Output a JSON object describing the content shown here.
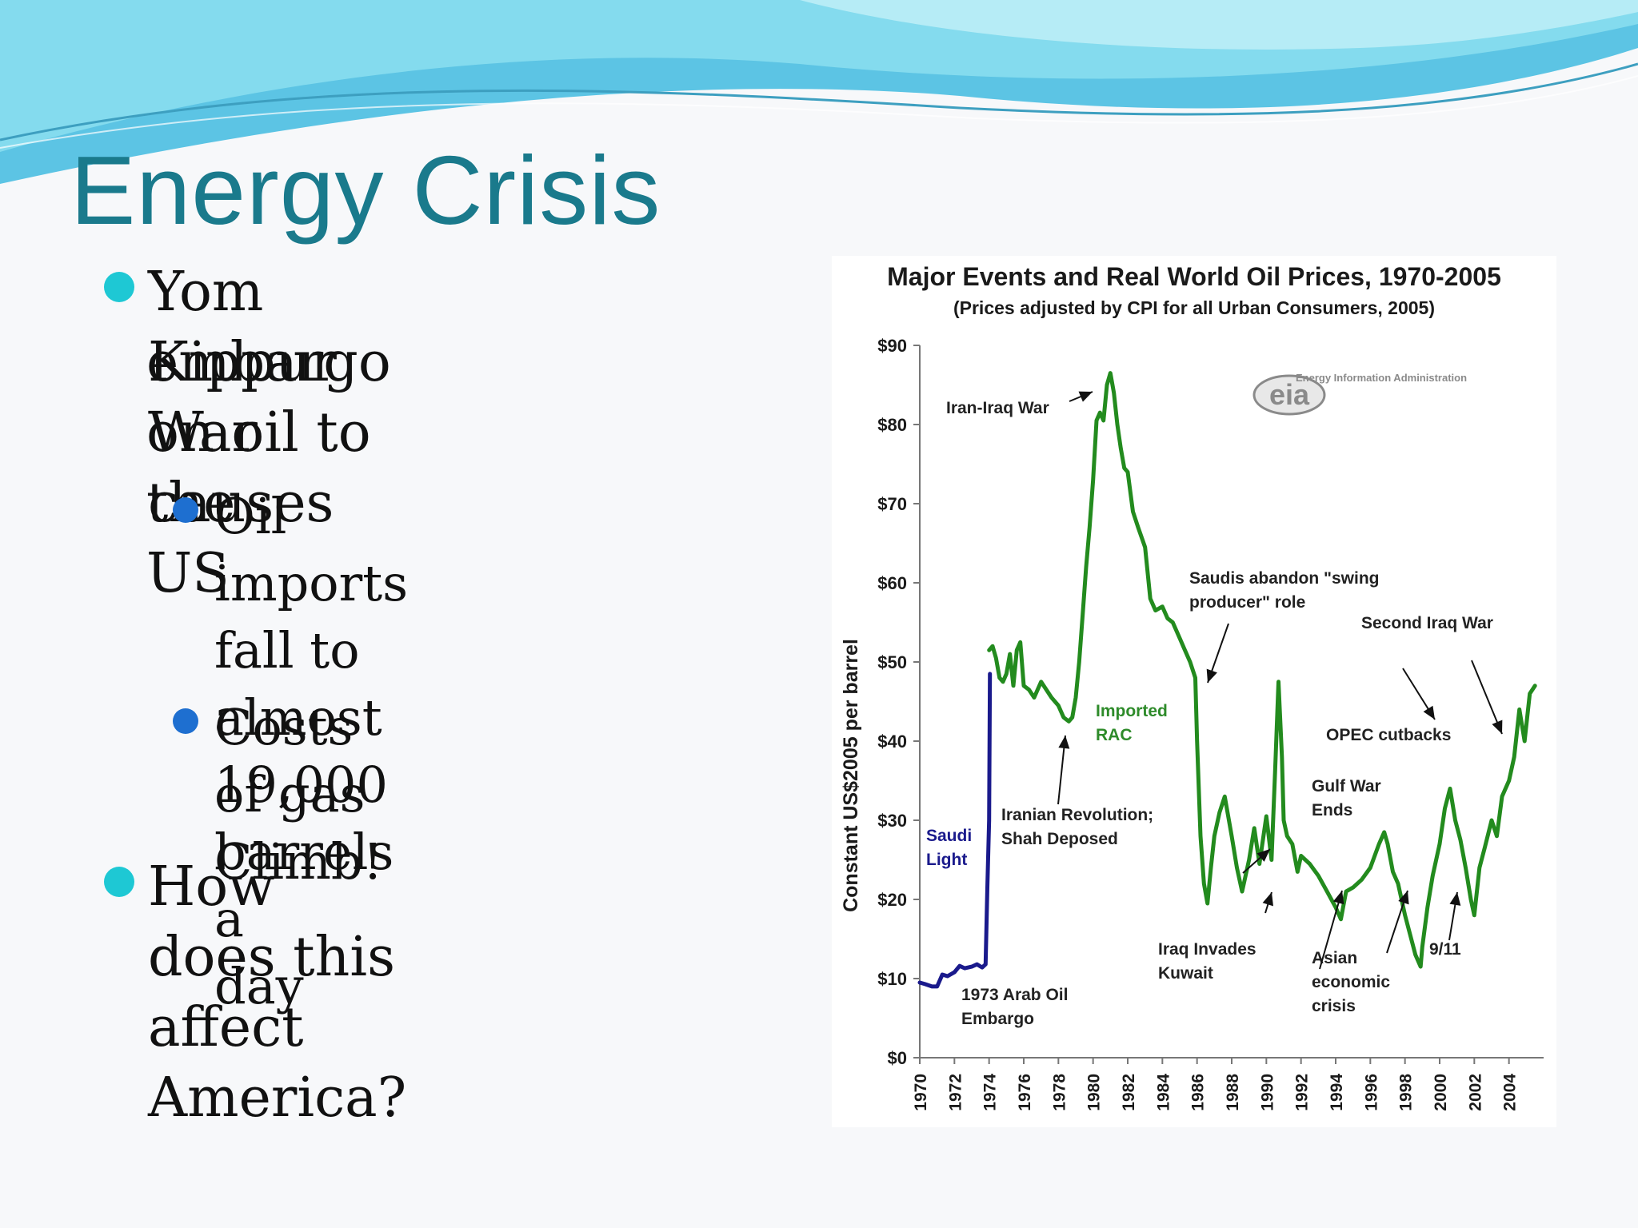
{
  "slide": {
    "title": "Energy Crisis",
    "bullets": [
      {
        "level": 1,
        "lines": [
          "Yom Kippur War causes",
          "embargo on oil to the",
          "US"
        ],
        "dot_color": "#1ec8d4"
      },
      {
        "level": 2,
        "lines": [
          "Oil imports fall to",
          "almost 19,000 barrels a",
          "day"
        ],
        "dot_color": "#1e6fd0"
      },
      {
        "level": 2,
        "lines": [
          "Costs of gas Climb!"
        ],
        "dot_color": "#1e6fd0"
      },
      {
        "level": 1,
        "lines": [
          "How does this affect",
          "America?"
        ],
        "dot_color": "#1ec8d4"
      }
    ],
    "colors": {
      "title": "#1a7a8c",
      "wave_light": "#8fe3f0",
      "wave_mid": "#5fc9e6",
      "wave_dark": "#3aa6cf"
    }
  },
  "chart_data": {
    "type": "line",
    "title": "Major Events and Real World Oil Prices, 1970-2005",
    "subtitle": "(Prices adjusted by CPI for all Urban Consumers, 2005)",
    "ylabel": "Constant US$2005 per barrel",
    "xlabel": "",
    "ylim": [
      0,
      90
    ],
    "xlim": [
      1970,
      2006
    ],
    "y_ticks": [
      "$0",
      "$10",
      "$20",
      "$30",
      "$40",
      "$50",
      "$60",
      "$70",
      "$80",
      "$90"
    ],
    "y_tick_values": [
      0,
      10,
      20,
      30,
      40,
      50,
      60,
      70,
      80,
      90
    ],
    "x_ticks": [
      "1970",
      "1972",
      "1974",
      "1976",
      "1978",
      "1980",
      "1982",
      "1984",
      "1986",
      "1988",
      "1990",
      "1992",
      "1994",
      "1996",
      "1998",
      "2000",
      "2002",
      "2004"
    ],
    "x_tick_values": [
      1970,
      1972,
      1974,
      1976,
      1978,
      1980,
      1982,
      1984,
      1986,
      1988,
      1990,
      1992,
      1994,
      1996,
      1998,
      2000,
      2002,
      2004
    ],
    "logo_text": "Energy Information Administration",
    "logo_mark": "eia",
    "series": [
      {
        "name": "Saudi Light",
        "color": "#1a1a8c",
        "x": [
          1970.0,
          1970.3,
          1970.7,
          1971.0,
          1971.3,
          1971.6,
          1972.0,
          1972.3,
          1972.6,
          1973.0,
          1973.3,
          1973.6,
          1973.8,
          1973.9,
          1974.0,
          1974.05
        ],
        "y": [
          9.5,
          9.3,
          9.0,
          9.0,
          10.5,
          10.3,
          10.8,
          11.6,
          11.3,
          11.5,
          11.8,
          11.4,
          11.8,
          21.5,
          30,
          48.5
        ]
      },
      {
        "name": "Imported RAC",
        "color": "#238b1e",
        "x": [
          1974.0,
          1974.2,
          1974.4,
          1974.6,
          1974.8,
          1975.0,
          1975.2,
          1975.4,
          1975.6,
          1975.8,
          1976.0,
          1976.3,
          1976.6,
          1977.0,
          1977.3,
          1977.6,
          1978.0,
          1978.3,
          1978.6,
          1978.8,
          1979.0,
          1979.2,
          1979.4,
          1979.6,
          1979.8,
          1980.0,
          1980.2,
          1980.4,
          1980.6,
          1980.8,
          1981.0,
          1981.2,
          1981.4,
          1981.6,
          1981.8,
          1982.0,
          1982.3,
          1982.6,
          1983.0,
          1983.3,
          1983.6,
          1984.0,
          1984.3,
          1984.6,
          1985.0,
          1985.3,
          1985.6,
          1985.9,
          1986.0,
          1986.2,
          1986.4,
          1986.6,
          1986.8,
          1987.0,
          1987.3,
          1987.6,
          1988.0,
          1988.3,
          1988.6,
          1989.0,
          1989.3,
          1989.6,
          1990.0,
          1990.3,
          1990.5,
          1990.7,
          1990.9,
          1991.0,
          1991.2,
          1991.5,
          1991.8,
          1992.0,
          1992.5,
          1993.0,
          1993.5,
          1994.0,
          1994.3,
          1994.6,
          1995.0,
          1995.5,
          1996.0,
          1996.5,
          1996.8,
          1997.0,
          1997.3,
          1997.6,
          1998.0,
          1998.3,
          1998.6,
          1998.9,
          1999.0,
          1999.3,
          1999.6,
          2000.0,
          2000.3,
          2000.6,
          2000.9,
          2001.2,
          2001.5,
          2001.8,
          2002.0,
          2002.3,
          2002.6,
          2003.0,
          2003.3,
          2003.6,
          2004.0,
          2004.3,
          2004.6,
          2004.9,
          2005.2,
          2005.5
        ],
        "y": [
          51.5,
          52.0,
          50.5,
          48.0,
          47.5,
          48.5,
          51.0,
          47.0,
          51.5,
          52.5,
          47.0,
          46.5,
          45.5,
          47.5,
          46.5,
          45.5,
          44.5,
          43.0,
          42.5,
          43.0,
          45.5,
          50.0,
          56.0,
          62.0,
          67.0,
          73.0,
          80.5,
          81.5,
          80.5,
          85.0,
          86.5,
          84.0,
          80.0,
          77.0,
          74.5,
          74.0,
          69.0,
          67.0,
          64.5,
          58.0,
          56.5,
          57.0,
          55.5,
          55.0,
          53.0,
          51.5,
          50.0,
          48.0,
          40.0,
          28.0,
          22.0,
          19.5,
          24.0,
          28.0,
          31.0,
          33.0,
          28.0,
          24.0,
          21.0,
          25.0,
          29.0,
          24.5,
          30.5,
          25.0,
          36.0,
          47.5,
          38.0,
          30.0,
          28.0,
          27.0,
          23.5,
          25.5,
          24.5,
          23.0,
          21.0,
          19.0,
          17.5,
          21.0,
          21.5,
          22.5,
          24.0,
          27.0,
          28.5,
          27.0,
          23.5,
          22.0,
          18.0,
          15.5,
          13.0,
          11.5,
          14.0,
          19.0,
          23.0,
          27.0,
          31.5,
          34.0,
          30.0,
          27.5,
          24.0,
          20.0,
          18.0,
          24.0,
          26.5,
          30.0,
          28.0,
          33.0,
          35.0,
          38.0,
          44.0,
          40.0,
          46.0,
          47.0
        ]
      }
    ],
    "annotations": [
      {
        "lines": [
          "Iran-Iraq War"
        ]
      },
      {
        "lines": [
          "Imported",
          "RAC"
        ]
      },
      {
        "lines": [
          "Iranian Revolution;",
          "Shah Deposed"
        ]
      },
      {
        "lines": [
          "Saudi",
          "Light"
        ]
      },
      {
        "lines": [
          "1973 Arab Oil",
          "Embargo"
        ]
      },
      {
        "lines": [
          "Saudis abandon \"swing",
          "producer\" role"
        ]
      },
      {
        "lines": [
          "Second Iraq War"
        ]
      },
      {
        "lines": [
          "OPEC cutbacks"
        ]
      },
      {
        "lines": [
          "Gulf War",
          "Ends"
        ]
      },
      {
        "lines": [
          "Iraq Invades",
          "Kuwait"
        ]
      },
      {
        "lines": [
          "Asian",
          "economic",
          "crisis"
        ]
      },
      {
        "lines": [
          "9/11"
        ]
      }
    ]
  }
}
